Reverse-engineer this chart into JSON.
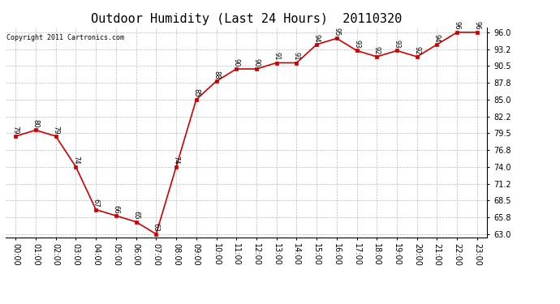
{
  "title": "Outdoor Humidity (Last 24 Hours)  20110320",
  "copyright": "Copyright 2011 Cartronics.com",
  "hours": [
    "00:00",
    "01:00",
    "02:00",
    "03:00",
    "04:00",
    "05:00",
    "06:00",
    "07:00",
    "08:00",
    "09:00",
    "10:00",
    "11:00",
    "12:00",
    "13:00",
    "14:00",
    "15:00",
    "16:00",
    "17:00",
    "18:00",
    "19:00",
    "20:00",
    "21:00",
    "22:00",
    "23:00"
  ],
  "values": [
    79,
    80,
    79,
    74,
    67,
    66,
    65,
    63,
    74,
    85,
    88,
    90,
    90,
    91,
    91,
    94,
    95,
    93,
    92,
    93,
    92,
    94,
    96,
    96
  ],
  "line_color": "#cc0000",
  "marker_color": "#cc0000",
  "bg_color": "#ffffff",
  "grid_color": "#bbbbbb",
  "yticks": [
    63.0,
    65.8,
    68.5,
    71.2,
    74.0,
    76.8,
    79.5,
    82.2,
    85.0,
    87.8,
    90.5,
    93.2,
    96.0
  ],
  "ylim": [
    62.5,
    96.8
  ],
  "xlim": [
    -0.5,
    23.5
  ],
  "title_fontsize": 11,
  "label_fontsize": 7,
  "annotation_fontsize": 6,
  "copyright_fontsize": 6
}
